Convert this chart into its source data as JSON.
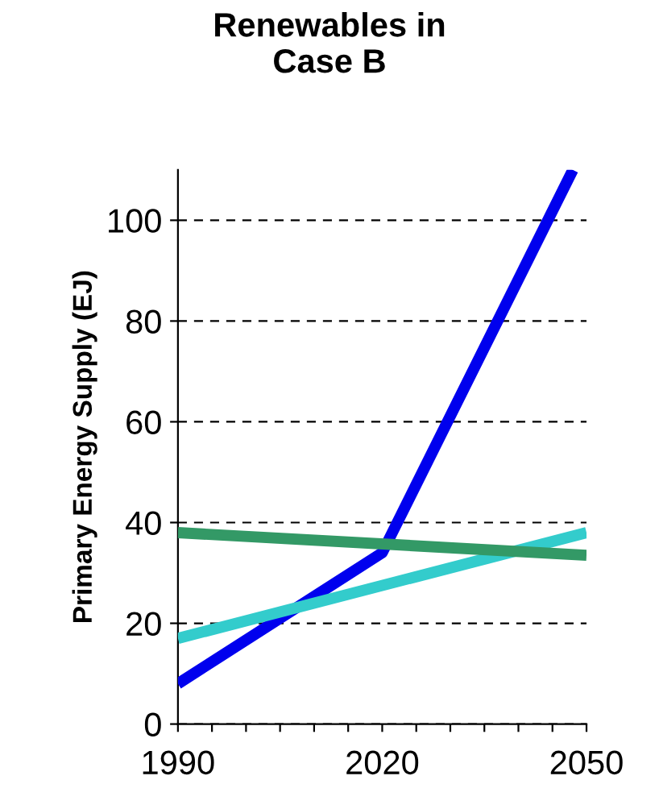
{
  "chart_data": {
    "type": "line",
    "title": "Renewables in\nCase B",
    "ylabel": "Primary Energy Supply (EJ)",
    "x": [
      1990,
      2050
    ],
    "series": [
      {
        "color": "#0000ee",
        "x": [
          1990,
          2020,
          2048
        ],
        "values": [
          8,
          34,
          110
        ]
      },
      {
        "color": "#33cccc",
        "values": [
          17,
          38
        ]
      },
      {
        "color": "#339966",
        "values": [
          38,
          33.5
        ]
      }
    ],
    "xlim": [
      1990,
      2050
    ],
    "ylim": [
      0,
      110
    ],
    "xticks": [
      1990,
      {
        "value": 1995,
        "label": null
      },
      {
        "value": 2000,
        "label": null
      },
      {
        "value": 2005,
        "label": null
      },
      {
        "value": 2010,
        "label": null
      },
      {
        "value": 2015,
        "label": null
      },
      2020,
      {
        "value": 2025,
        "label": null
      },
      {
        "value": 2030,
        "label": null
      },
      {
        "value": 2035,
        "label": null
      },
      {
        "value": 2040,
        "label": null
      },
      {
        "value": 2045,
        "label": null
      },
      2050
    ],
    "yticks": [
      0,
      20,
      40,
      60,
      80,
      100
    ],
    "grid": "y",
    "line_style": "solid",
    "marker": "none",
    "legend": false
  }
}
